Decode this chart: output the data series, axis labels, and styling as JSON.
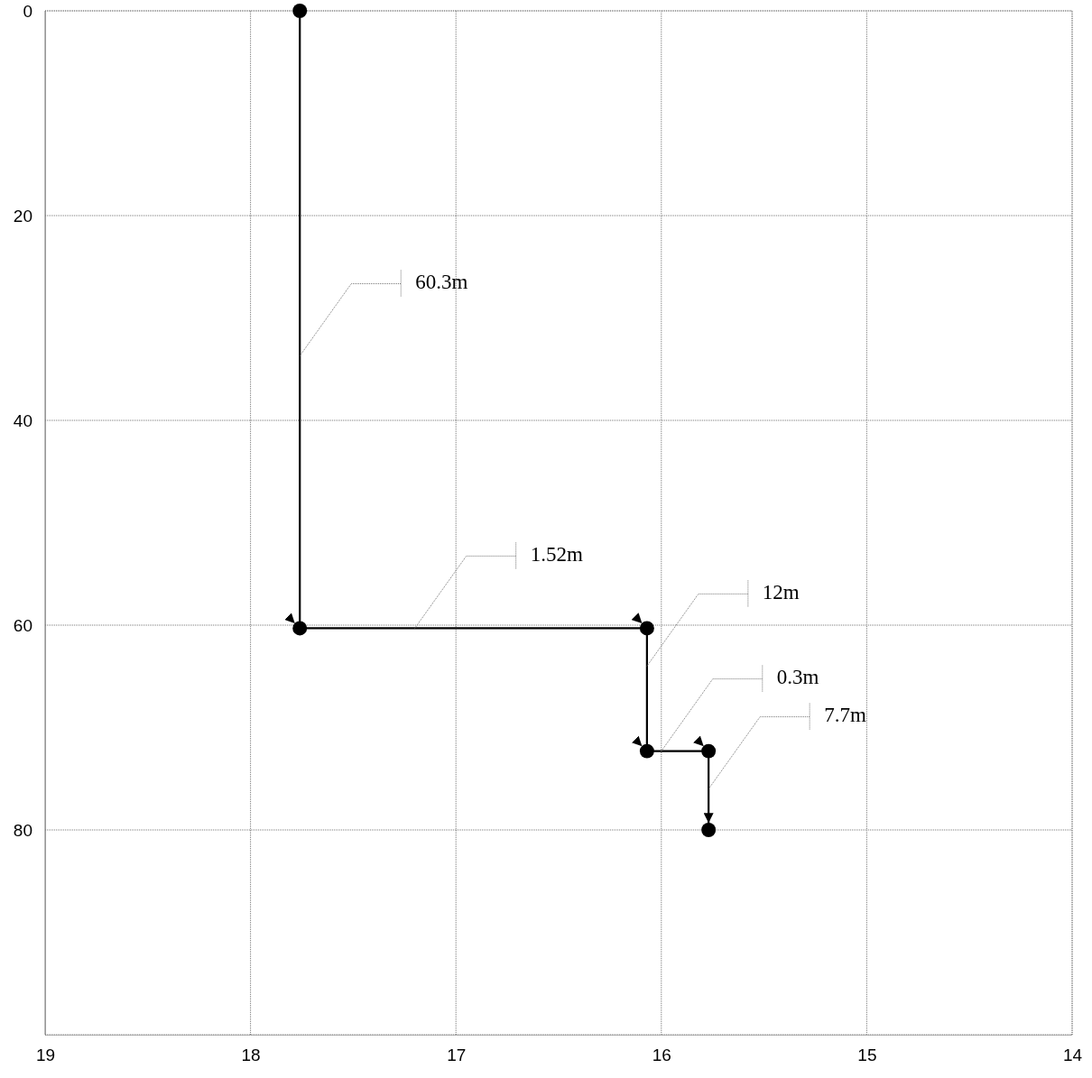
{
  "chart_data": {
    "type": "line",
    "x": [
      17.76,
      17.76,
      16.07,
      16.07,
      15.77,
      15.77
    ],
    "series": [
      {
        "color": "#000000",
        "values": [
          0,
          60.3,
          60.3,
          72.3,
          72.3,
          80
        ]
      }
    ],
    "marker": "circle",
    "line_style": "solid",
    "xlim": [
      19,
      14
    ],
    "xticks": [
      19,
      18,
      17,
      16,
      15,
      14
    ],
    "ylim": [
      100,
      0
    ],
    "yticks": [
      0,
      20,
      40,
      60,
      80
    ],
    "grid": true,
    "annotations": [
      {
        "text": "60.3m",
        "x": 17.76,
        "y": 33.7
      },
      {
        "text": "1.52m",
        "x": 17.2,
        "y": 60.3
      },
      {
        "text": "12m",
        "x": 16.07,
        "y": 64
      },
      {
        "text": "0.3m",
        "x": 16.0,
        "y": 72.3
      },
      {
        "text": "7.7m",
        "x": 15.77,
        "y": 76
      }
    ]
  }
}
